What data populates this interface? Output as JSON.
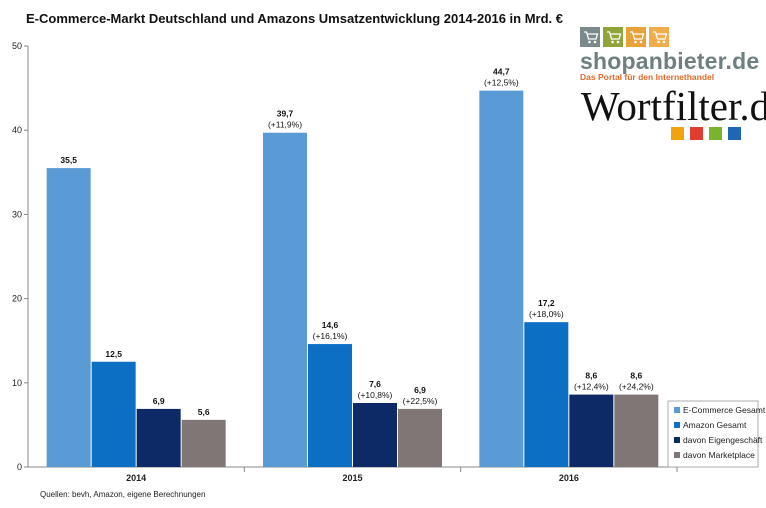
{
  "chart_data": {
    "type": "bar",
    "title": "E-Commerce-Markt Deutschland und Amazons Umsatzentwicklung 2014-2016 in Mrd. €",
    "categories": [
      "2014",
      "2015",
      "2016"
    ],
    "ylim": [
      0,
      50
    ],
    "yticks": [
      "0",
      "10",
      "20",
      "30",
      "40",
      "50"
    ],
    "grid": false,
    "legend_position": "bottom-right",
    "series": [
      {
        "name": "E-Commerce Gesamt",
        "color": "#5b9bd5",
        "values": [
          35.5,
          39.7,
          44.7
        ],
        "value_labels": [
          "35,5",
          "39,7",
          "44,7"
        ],
        "change_labels": [
          "",
          "(+11,9%)",
          "(+12,5%)"
        ]
      },
      {
        "name": "Amazon Gesamt",
        "color": "#0c6fc4",
        "values": [
          12.5,
          14.6,
          17.2
        ],
        "value_labels": [
          "12,5",
          "14,6",
          "17,2"
        ],
        "change_labels": [
          "",
          "(+16,1%)",
          "(+18,0%)"
        ]
      },
      {
        "name": "davon Eigengeschäft",
        "color": "#0e2a66",
        "values": [
          6.9,
          7.6,
          8.6
        ],
        "value_labels": [
          "6,9",
          "7,6",
          "8,6"
        ],
        "change_labels": [
          "",
          "(+10,8%)",
          "(+12,4%)"
        ]
      },
      {
        "name": "davon Marketplace",
        "color": "#7f7675",
        "values": [
          5.6,
          6.9,
          8.6
        ],
        "value_labels": [
          "5,6",
          "6,9",
          "8,6"
        ],
        "change_labels": [
          "",
          "(+22,5%)",
          "(+24,2%)"
        ]
      }
    ],
    "source": "Quellen: bevh, Amazon, eigene Berechnungen"
  },
  "logos": {
    "shopanbieter": {
      "name": "shopanbieter.de",
      "tagline": "Das Portal für den Internethandel",
      "icon": "shopping-cart-icon",
      "box_colors": [
        "#7a8a8b",
        "#8fa53a",
        "#e8a23a",
        "#f0ad4e"
      ]
    },
    "wortfilter": {
      "name": "Wortfilter.de",
      "square_colors": [
        "#f0a30a",
        "#e03c31",
        "#7ab32e",
        "#1f66b5"
      ]
    }
  }
}
